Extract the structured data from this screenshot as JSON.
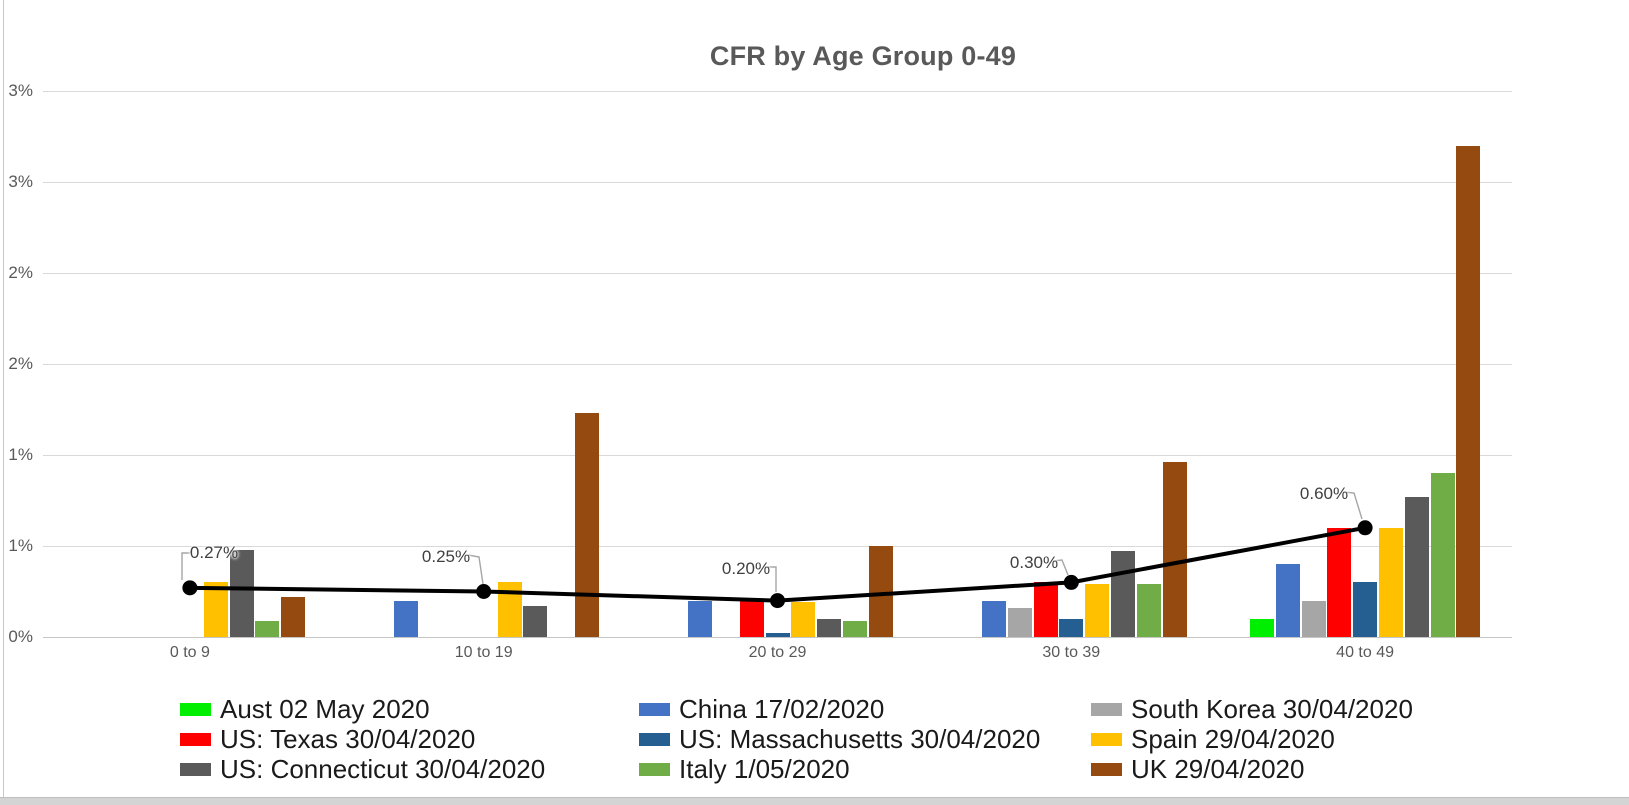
{
  "chart_data": {
    "type": "bar",
    "title": "CFR by Age Group 0-49",
    "categories": [
      "0 to 9",
      "10 to 19",
      "20 to 29",
      "30 to 39",
      "40 to 49"
    ],
    "unit": "%",
    "y_axis": {
      "min": 0,
      "max": 3.0,
      "major_unit": 0.5,
      "tick_labels_top_to_bottom": [
        "3%",
        "3%",
        "2%",
        "2%",
        "1%",
        "1%",
        "0%"
      ],
      "grid": true
    },
    "series": [
      {
        "name": "Aust 02 May 2020",
        "color": "#00EE00",
        "values": [
          0,
          0,
          0,
          0,
          0.1
        ]
      },
      {
        "name": "China 17/02/2020",
        "color": "#4472C4",
        "values": [
          0,
          0.2,
          0.2,
          0.2,
          0.4
        ]
      },
      {
        "name": "South Korea 30/04/2020",
        "color": "#A6A6A6",
        "values": [
          0,
          0,
          0,
          0.16,
          0.2
        ]
      },
      {
        "name": "US: Texas 30/04/2020",
        "color": "#FF0000",
        "values": [
          0,
          0,
          0.2,
          0.3,
          0.6
        ]
      },
      {
        "name": "US: Massachusetts 30/04/2020",
        "color": "#255E91",
        "values": [
          0,
          0,
          0.02,
          0.1,
          0.3
        ]
      },
      {
        "name": "Spain 29/04/2020",
        "color": "#FFC000",
        "values": [
          0.3,
          0.3,
          0.19,
          0.29,
          0.6
        ]
      },
      {
        "name": "US: Connecticut 30/04/2020",
        "color": "#5A5A5A",
        "values": [
          0.48,
          0.17,
          0.1,
          0.47,
          0.77
        ]
      },
      {
        "name": "Italy 1/05/2020",
        "color": "#70AD47",
        "values": [
          0.09,
          0,
          0.09,
          0.29,
          0.9
        ]
      },
      {
        "name": "UK 29/04/2020",
        "color": "#954A0F",
        "values": [
          0.22,
          1.23,
          0.5,
          0.96,
          2.7
        ]
      }
    ],
    "line_series": {
      "color": "#000000",
      "values": [
        0.27,
        0.25,
        0.2,
        0.3,
        0.6
      ],
      "data_labels": [
        "0.27%",
        "0.25%",
        "0.20%",
        "0.30%",
        "0.60%"
      ]
    },
    "legend_position": "bottom"
  },
  "colors": {
    "grid": "#D9D9D9",
    "axis_text": "#595959",
    "title_text": "#595959",
    "data_label_text": "#404040",
    "leader_line": "#A6A6A6",
    "legend_text": "#1A1A1A"
  }
}
